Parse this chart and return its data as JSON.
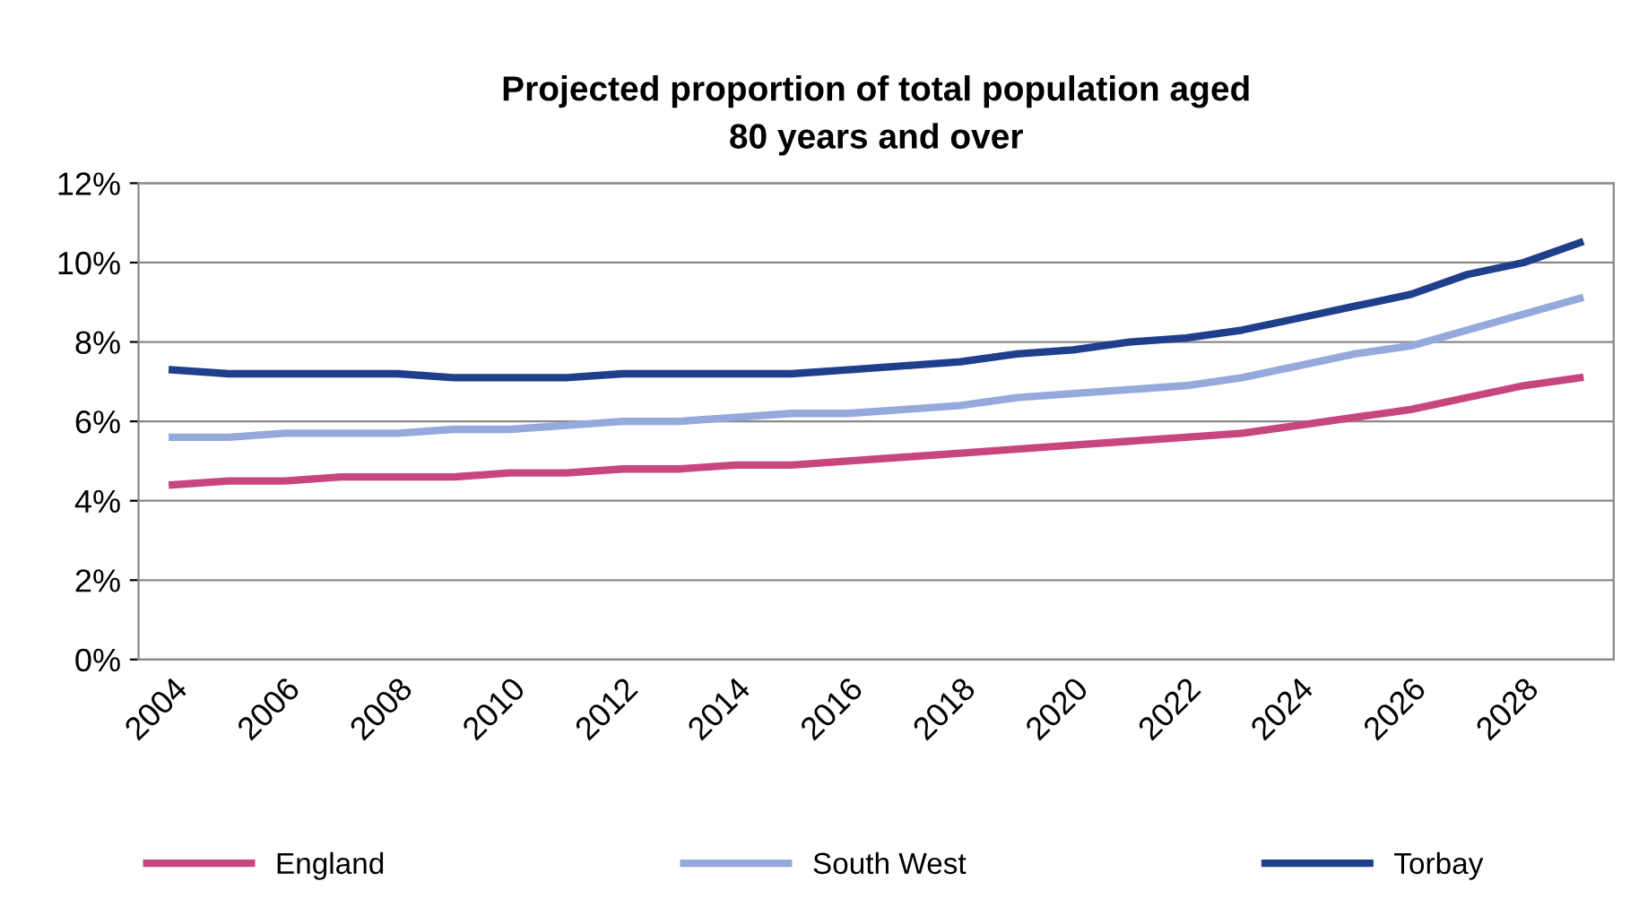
{
  "chart_data": {
    "type": "line",
    "title": "Projected proportion of total population aged\n80 years and over",
    "categories": [
      "2004",
      null,
      "2006",
      null,
      "2008",
      null,
      "2010",
      null,
      "2012",
      null,
      "2014",
      null,
      "2016",
      null,
      "2018",
      null,
      "2020",
      null,
      "2022",
      null,
      "2024",
      null,
      "2026",
      null,
      "2028",
      null
    ],
    "series": [
      {
        "name": "England",
        "color": "#c8467f",
        "values": [
          4.4,
          4.5,
          4.5,
          4.6,
          4.6,
          4.6,
          4.7,
          4.7,
          4.8,
          4.8,
          4.9,
          4.9,
          5.0,
          5.1,
          5.2,
          5.3,
          5.4,
          5.5,
          5.6,
          5.7,
          5.9,
          6.1,
          6.3,
          6.6,
          6.9,
          7.1
        ]
      },
      {
        "name": "South West",
        "color": "#95a9dc",
        "values": [
          5.6,
          5.6,
          5.7,
          5.7,
          5.7,
          5.8,
          5.8,
          5.9,
          6.0,
          6.0,
          6.1,
          6.2,
          6.2,
          6.3,
          6.4,
          6.6,
          6.7,
          6.8,
          6.9,
          7.1,
          7.4,
          7.7,
          7.9,
          8.3,
          8.7,
          9.1
        ]
      },
      {
        "name": "Torbay",
        "color": "#1f3f8c",
        "values": [
          7.3,
          7.2,
          7.2,
          7.2,
          7.2,
          7.1,
          7.1,
          7.1,
          7.2,
          7.2,
          7.2,
          7.2,
          7.3,
          7.4,
          7.5,
          7.7,
          7.8,
          8.0,
          8.1,
          8.3,
          8.6,
          8.9,
          9.2,
          9.7,
          10.0,
          10.5
        ]
      }
    ],
    "ylim": [
      0,
      12
    ],
    "yticks": [
      {
        "value": 0,
        "label": "0%"
      },
      {
        "value": 2,
        "label": "2%"
      },
      {
        "value": 4,
        "label": "4%"
      },
      {
        "value": 6,
        "label": "6%"
      },
      {
        "value": 8,
        "label": "8%"
      },
      {
        "value": 10,
        "label": "10%"
      },
      {
        "value": 12,
        "label": "12%"
      }
    ],
    "grid": "y",
    "legend": "bottom",
    "marker": "none",
    "line_style": "solid"
  }
}
